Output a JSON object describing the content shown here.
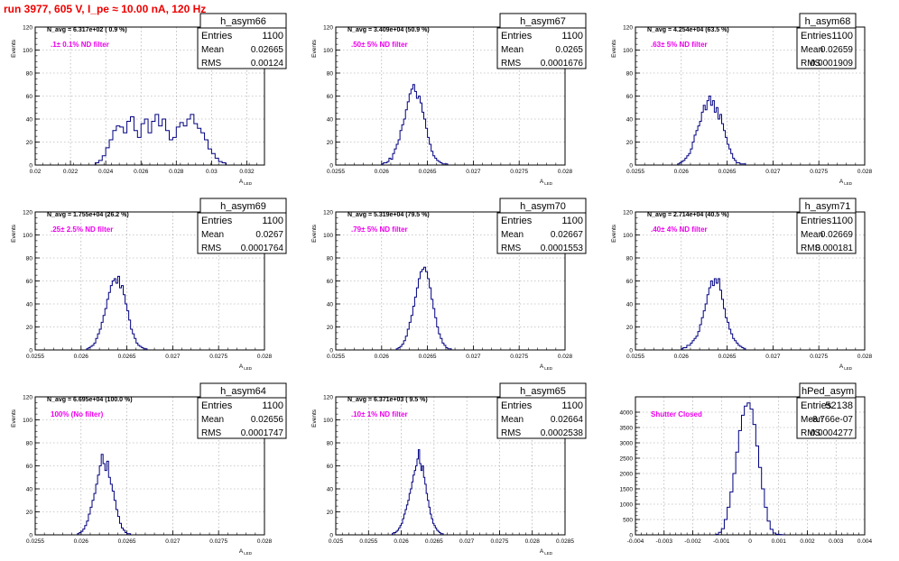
{
  "page": {
    "title": "run 3977,   605 V, I_pe ≈ 10.00 nA, 120 Hz"
  },
  "labels": {
    "stat_entries": "Entries",
    "stat_mean": "Mean",
    "stat_rms": "RMS"
  },
  "colors": {
    "histogram": "#000080",
    "annotation": "#ee00ee",
    "title": "#ee0000",
    "grid": "#999999"
  },
  "chart_data": [
    {
      "type": "bar",
      "name": "h_asym66",
      "ylabel": "Events",
      "xlabel": "A",
      "xlabel_sub": "LED",
      "nlabel": "N_avg = 6.317e+02 ( 0.9 %)",
      "annotation": ".1± 0.1% ND filter",
      "entries": "1100",
      "mean": "0.02665",
      "rms": "0.00124",
      "xlim": [
        0.02,
        0.033
      ],
      "ylim": [
        0,
        120
      ],
      "xticks": [
        0.02,
        0.022,
        0.024,
        0.026,
        0.028,
        0.03,
        0.032
      ],
      "xtick_labels": [
        "0.02",
        "0.022",
        "0.024",
        "0.026",
        "0.028",
        "0.03",
        "0.032"
      ],
      "yticks": [
        0,
        20,
        40,
        60,
        80,
        100,
        120
      ],
      "ytick_labels": [
        "0",
        "20",
        "40",
        "60",
        "80",
        "100",
        "120"
      ],
      "bins": {
        "start": 0.0234,
        "width": 0.0002,
        "values": [
          2,
          4,
          8,
          15,
          22,
          30,
          34,
          33,
          28,
          38,
          42,
          30,
          24,
          36,
          40,
          28,
          38,
          44,
          34,
          40,
          30,
          22,
          24,
          33,
          37,
          34,
          40,
          44,
          36,
          32,
          28,
          22,
          14,
          10,
          6,
          3,
          2
        ]
      }
    },
    {
      "type": "bar",
      "name": "h_asym67",
      "ylabel": "Events",
      "xlabel": "A",
      "xlabel_sub": "LED",
      "nlabel": "N_avg = 3.409e+04 (50.9 %)",
      "annotation": ".50± 5% ND filter",
      "entries": "1100",
      "mean": "0.0265",
      "rms": "0.0001676",
      "xlim": [
        0.0255,
        0.028
      ],
      "ylim": [
        0,
        120
      ],
      "xticks": [
        0.0255,
        0.026,
        0.0265,
        0.027,
        0.0275,
        0.028
      ],
      "xtick_labels": [
        "0.0255",
        "0.026",
        "0.0265",
        "0.027",
        "0.0275",
        "0.028"
      ],
      "yticks": [
        0,
        20,
        40,
        60,
        80,
        100,
        120
      ],
      "ytick_labels": [
        "0",
        "20",
        "40",
        "60",
        "80",
        "100",
        "120"
      ],
      "bins": {
        "start": 0.026,
        "width": 2e-05,
        "values": [
          1,
          2,
          2,
          3,
          6,
          5,
          10,
          14,
          18,
          22,
          30,
          35,
          40,
          48,
          55,
          62,
          66,
          70,
          64,
          58,
          60,
          54,
          46,
          40,
          32,
          24,
          18,
          12,
          8,
          6,
          4,
          3,
          2,
          1,
          1,
          1
        ]
      }
    },
    {
      "type": "bar",
      "name": "h_asym68",
      "ylabel": "Events",
      "xlabel": "A",
      "xlabel_sub": "LED",
      "nlabel": "N_avg = 4.254e+04 (63.5 %)",
      "annotation": ".63± 5% ND filter",
      "entries": "1100",
      "mean": "0.02659",
      "rms": "0.0001909",
      "xlim": [
        0.0255,
        0.028
      ],
      "ylim": [
        0,
        120
      ],
      "xticks": [
        0.0255,
        0.026,
        0.0265,
        0.027,
        0.0275,
        0.028
      ],
      "xtick_labels": [
        "0.0255",
        "0.026",
        "0.0265",
        "0.027",
        "0.0275",
        "0.028"
      ],
      "yticks": [
        0,
        20,
        40,
        60,
        80,
        100,
        120
      ],
      "ytick_labels": [
        "0",
        "20",
        "40",
        "60",
        "80",
        "100",
        "120"
      ],
      "bins": {
        "start": 0.02596,
        "width": 2e-05,
        "values": [
          1,
          2,
          3,
          4,
          6,
          8,
          10,
          14,
          20,
          26,
          30,
          34,
          38,
          46,
          52,
          48,
          56,
          60,
          52,
          56,
          46,
          50,
          40,
          44,
          36,
          30,
          24,
          18,
          14,
          10,
          6,
          4,
          2,
          2,
          1,
          1,
          1
        ]
      }
    },
    {
      "type": "bar",
      "name": "h_asym69",
      "ylabel": "Events",
      "xlabel": "A",
      "xlabel_sub": "LED",
      "nlabel": "N_avg = 1.755e+04 (26.2 %)",
      "annotation": ".25± 2.5% ND filter",
      "entries": "1100",
      "mean": "0.0267",
      "rms": "0.0001764",
      "xlim": [
        0.0255,
        0.028
      ],
      "ylim": [
        0,
        120
      ],
      "xticks": [
        0.0255,
        0.026,
        0.0265,
        0.027,
        0.0275,
        0.028
      ],
      "xtick_labels": [
        "0.0255",
        "0.026",
        "0.0265",
        "0.027",
        "0.0275",
        "0.028"
      ],
      "yticks": [
        0,
        20,
        40,
        60,
        80,
        100,
        120
      ],
      "ytick_labels": [
        "0",
        "20",
        "40",
        "60",
        "80",
        "100",
        "120"
      ],
      "bins": {
        "start": 0.02606,
        "width": 2e-05,
        "values": [
          1,
          2,
          3,
          4,
          6,
          10,
          14,
          18,
          24,
          30,
          36,
          44,
          50,
          56,
          60,
          62,
          58,
          64,
          54,
          56,
          48,
          40,
          34,
          26,
          18,
          14,
          10,
          6,
          4,
          3,
          2,
          1,
          1
        ]
      }
    },
    {
      "type": "bar",
      "name": "h_asym70",
      "ylabel": "Events",
      "xlabel": "A",
      "xlabel_sub": "LED",
      "nlabel": "N_avg = 5.319e+04 (79.5 %)",
      "annotation": ".79± 5% ND filter",
      "entries": "1100",
      "mean": "0.02667",
      "rms": "0.0001553",
      "xlim": [
        0.0255,
        0.028
      ],
      "ylim": [
        0,
        120
      ],
      "xticks": [
        0.0255,
        0.026,
        0.0265,
        0.027,
        0.0275,
        0.028
      ],
      "xtick_labels": [
        "0.0255",
        "0.026",
        "0.0265",
        "0.027",
        "0.0275",
        "0.028"
      ],
      "yticks": [
        0,
        20,
        40,
        60,
        80,
        100,
        120
      ],
      "ytick_labels": [
        "0",
        "20",
        "40",
        "60",
        "80",
        "100",
        "120"
      ],
      "bins": {
        "start": 0.02616,
        "width": 2e-05,
        "values": [
          1,
          2,
          3,
          5,
          8,
          12,
          18,
          24,
          30,
          38,
          46,
          54,
          62,
          68,
          70,
          72,
          68,
          62,
          54,
          44,
          36,
          28,
          20,
          14,
          10,
          6,
          4,
          2,
          1,
          1
        ]
      }
    },
    {
      "type": "bar",
      "name": "h_asym71",
      "ylabel": "Events",
      "xlabel": "A",
      "xlabel_sub": "LED",
      "nlabel": "N_avg = 2.714e+04 (40.5 %)",
      "annotation": ".40± 4% ND filter",
      "entries": "1100",
      "mean": "0.02669",
      "rms": "0.000181",
      "xlim": [
        0.0255,
        0.028
      ],
      "ylim": [
        0,
        120
      ],
      "xticks": [
        0.0255,
        0.026,
        0.0265,
        0.027,
        0.0275,
        0.028
      ],
      "xtick_labels": [
        "0.0255",
        "0.026",
        "0.0265",
        "0.027",
        "0.0275",
        "0.028"
      ],
      "yticks": [
        0,
        20,
        40,
        60,
        80,
        100,
        120
      ],
      "ytick_labels": [
        "0",
        "20",
        "40",
        "60",
        "80",
        "100",
        "120"
      ],
      "bins": {
        "start": 0.026,
        "width": 2e-05,
        "values": [
          1,
          2,
          2,
          4,
          4,
          6,
          8,
          10,
          12,
          16,
          22,
          28,
          34,
          40,
          48,
          54,
          60,
          56,
          62,
          58,
          62,
          52,
          44,
          36,
          28,
          24,
          18,
          14,
          10,
          8,
          6,
          4,
          3,
          2,
          1
        ]
      }
    },
    {
      "type": "bar",
      "name": "h_asym64",
      "ylabel": "Events",
      "xlabel": "A",
      "xlabel_sub": "LED",
      "nlabel": "N_avg = 6.695e+04 (100.0 %)",
      "annotation": "100% (No filter)",
      "entries": "1100",
      "mean": "0.02656",
      "rms": "0.0001747",
      "xlim": [
        0.0255,
        0.028
      ],
      "ylim": [
        0,
        120
      ],
      "xticks": [
        0.0255,
        0.026,
        0.0265,
        0.027,
        0.0275,
        0.028
      ],
      "xtick_labels": [
        "0.0255",
        "0.026",
        "0.0265",
        "0.027",
        "0.0275",
        "0.028"
      ],
      "yticks": [
        0,
        20,
        40,
        60,
        80,
        100,
        120
      ],
      "ytick_labels": [
        "0",
        "20",
        "40",
        "60",
        "80",
        "100",
        "120"
      ],
      "bins": {
        "start": 0.02596,
        "width": 2e-05,
        "values": [
          1,
          2,
          3,
          5,
          8,
          12,
          18,
          24,
          30,
          36,
          44,
          52,
          60,
          70,
          62,
          56,
          64,
          50,
          44,
          38,
          30,
          22,
          16,
          10,
          6,
          4,
          2,
          1,
          1
        ]
      }
    },
    {
      "type": "bar",
      "name": "h_asym65",
      "ylabel": "Events",
      "xlabel": "A",
      "xlabel_sub": "LED",
      "nlabel": "N_avg = 6.371e+03 ( 9.5 %)",
      "annotation": ".10± 1% ND filter",
      "entries": "1100",
      "mean": "0.02664",
      "rms": "0.0002538",
      "xlim": [
        0.025,
        0.0285
      ],
      "ylim": [
        0,
        120
      ],
      "xticks": [
        0.025,
        0.0255,
        0.026,
        0.0265,
        0.027,
        0.0275,
        0.028,
        0.0285
      ],
      "xtick_labels": [
        "0.025",
        "0.0255",
        "0.026",
        "0.0265",
        "0.027",
        "0.0275",
        "0.028",
        "0.0285"
      ],
      "yticks": [
        0,
        20,
        40,
        60,
        80,
        100,
        120
      ],
      "ytick_labels": [
        "0",
        "20",
        "40",
        "60",
        "80",
        "100",
        "120"
      ],
      "bins": {
        "start": 0.02586,
        "width": 2e-05,
        "values": [
          1,
          2,
          2,
          3,
          4,
          6,
          8,
          10,
          14,
          18,
          22,
          26,
          30,
          36,
          40,
          46,
          52,
          56,
          60,
          66,
          74,
          62,
          56,
          60,
          50,
          44,
          36,
          30,
          24,
          18,
          14,
          10,
          8,
          6,
          4,
          3,
          2,
          1,
          1
        ]
      }
    },
    {
      "type": "bar",
      "name": "hPed_asym",
      "ylabel": "",
      "xlabel": "",
      "xlabel_sub": "",
      "nlabel": "",
      "annotation": "Shutter Closed",
      "entries": "52138",
      "mean": "-8.766e-07",
      "rms": "0.0004277",
      "xlim": [
        -0.004,
        0.004
      ],
      "ylim": [
        0,
        4500
      ],
      "xticks": [
        -0.004,
        -0.003,
        -0.002,
        -0.001,
        0,
        0.001,
        0.002,
        0.003,
        0.004
      ],
      "xtick_labels": [
        "-0.004",
        "-0.003",
        "-0.002",
        "-0.001",
        "0",
        "0.001",
        "0.002",
        "0.003",
        "0.004"
      ],
      "yticks": [
        0,
        500,
        1000,
        1500,
        2000,
        2500,
        3000,
        3500,
        4000
      ],
      "ytick_labels": [
        "0",
        "500",
        "1000",
        "1500",
        "2000",
        "2500",
        "3000",
        "3500",
        "4000"
      ],
      "bins": {
        "start": -0.0012,
        "width": 0.0001,
        "values": [
          20,
          80,
          200,
          500,
          900,
          1400,
          2000,
          2700,
          3400,
          3900,
          4200,
          4300,
          4100,
          3600,
          2900,
          2200,
          1500,
          900,
          450,
          180,
          60,
          20,
          10,
          5
        ]
      }
    }
  ]
}
